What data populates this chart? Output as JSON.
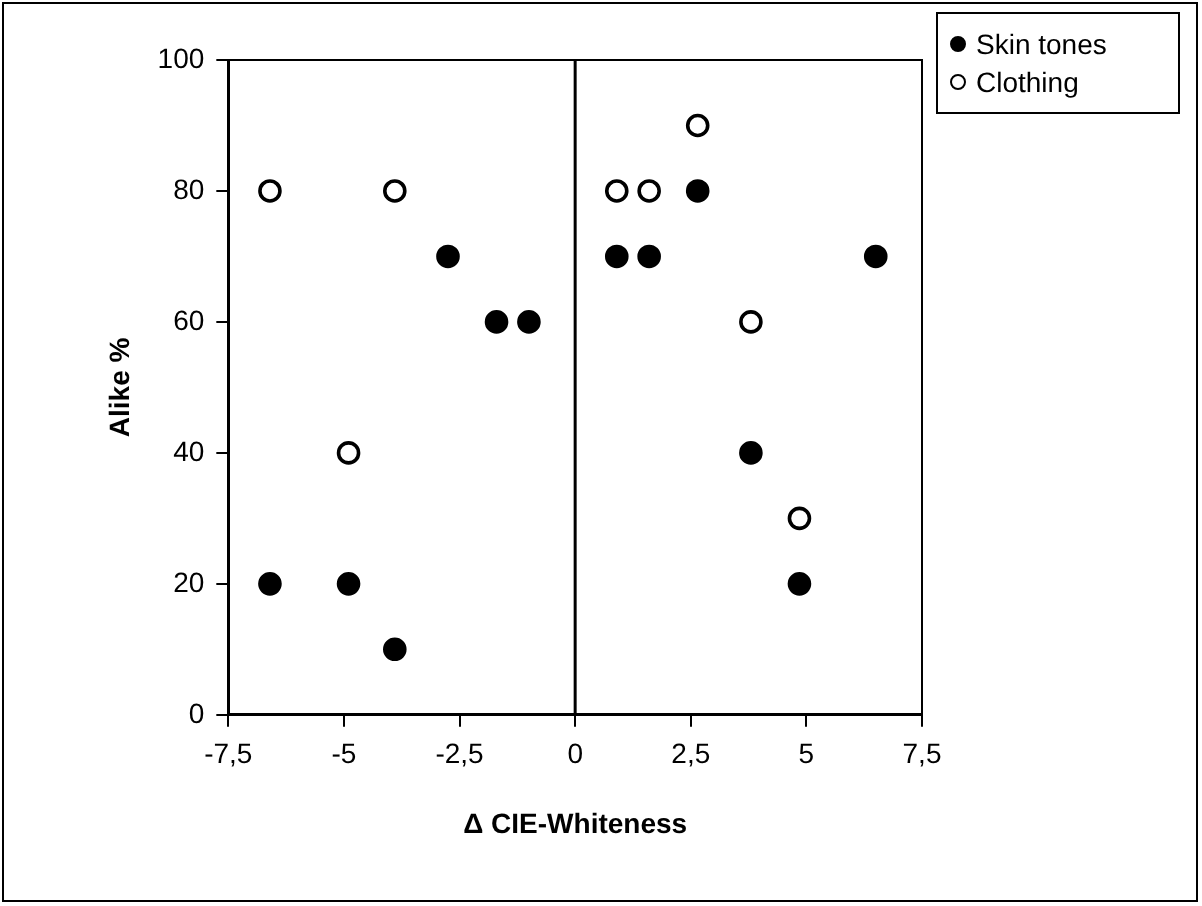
{
  "chart_data": {
    "type": "scatter",
    "xlabel": "Δ CIE-Whiteness",
    "ylabel": "Alike %",
    "series": [
      {
        "name": "Skin tones",
        "color": "#000000",
        "marker": "circle",
        "x": [
          -6.6,
          -4.9,
          -3.9,
          -2.75,
          -1.7,
          -1.0,
          0.9,
          1.6,
          2.65,
          3.8,
          4.85,
          6.5
        ],
        "values": [
          20,
          20,
          10,
          70,
          60,
          60,
          70,
          70,
          80,
          40,
          20,
          70
        ]
      },
      {
        "name": "Clothing",
        "color": "#ffffff",
        "marker": "circle",
        "x": [
          -6.6,
          -4.9,
          -3.9,
          0.9,
          1.6,
          2.65,
          3.8,
          4.85
        ],
        "values": [
          80,
          40,
          80,
          80,
          80,
          90,
          60,
          30
        ]
      }
    ],
    "xlim": [
      -7.5,
      7.5
    ],
    "xticks": [
      {
        "value": -7.5,
        "label": "-7,5"
      },
      -5,
      {
        "value": -2.5,
        "label": "-2,5"
      },
      0,
      {
        "value": 2.5,
        "label": "2,5"
      },
      5,
      {
        "value": 7.5,
        "label": "7,5"
      }
    ],
    "ylim": [
      0,
      100
    ],
    "yticks": [
      0,
      20,
      40,
      60,
      80,
      100
    ],
    "ref_lines": [
      {
        "axis": "x",
        "value": 0,
        "color": "#000000"
      }
    ],
    "grid": false,
    "legend": "top right"
  }
}
